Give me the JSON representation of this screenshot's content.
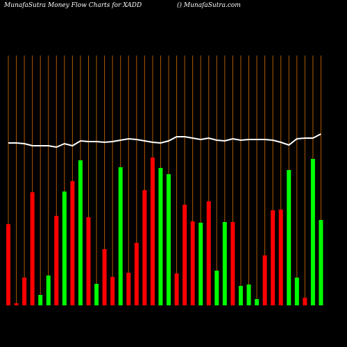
{
  "chart_data": {
    "type": "bar",
    "title": "MunafaSutra  Money Flow  Charts for XADD",
    "subtitle": "() MunafaSutra.com",
    "values": [
      117,
      3,
      40,
      163,
      15,
      43,
      129,
      164,
      179,
      209,
      127,
      31,
      81,
      41,
      199,
      47,
      90,
      166,
      213,
      198,
      189,
      46,
      145,
      121,
      119,
      150,
      50,
      120,
      120,
      28,
      30,
      9,
      72,
      137,
      138,
      195,
      40,
      11,
      211,
      123
    ],
    "colors": [
      "#ff0000",
      "#ff0000",
      "#ff0000",
      "#ff0000",
      "#00ff00",
      "#00ff00",
      "#ff0000",
      "#00ff00",
      "#ff0000",
      "#00ff00",
      "#ff0000",
      "#00ff00",
      "#ff0000",
      "#ff0000",
      "#00ff00",
      "#ff0000",
      "#ff0000",
      "#ff0000",
      "#ff0000",
      "#00ff00",
      "#00ff00",
      "#ff0000",
      "#ff0000",
      "#ff0000",
      "#00ff00",
      "#ff0000",
      "#00ff00",
      "#00ff00",
      "#ff0000",
      "#00ff00",
      "#00ff00",
      "#00ff00",
      "#ff0000",
      "#ff0000",
      "#ff0000",
      "#00ff00",
      "#00ff00",
      "#ff0000",
      "#00ff00",
      "#00ff00"
    ],
    "line": {
      "color": "#ffffff",
      "values": [
        234,
        234,
        233,
        230,
        230,
        230,
        228,
        233,
        230,
        237,
        236,
        236,
        235,
        236,
        238,
        240,
        239,
        237,
        235,
        234,
        237,
        243,
        243,
        241,
        239,
        241,
        238,
        237,
        240,
        238,
        239,
        239,
        239,
        238,
        235,
        231,
        240,
        241,
        241,
        247
      ]
    },
    "ylim": [
      0,
      360
    ],
    "gridline_color": "#b05a00"
  }
}
